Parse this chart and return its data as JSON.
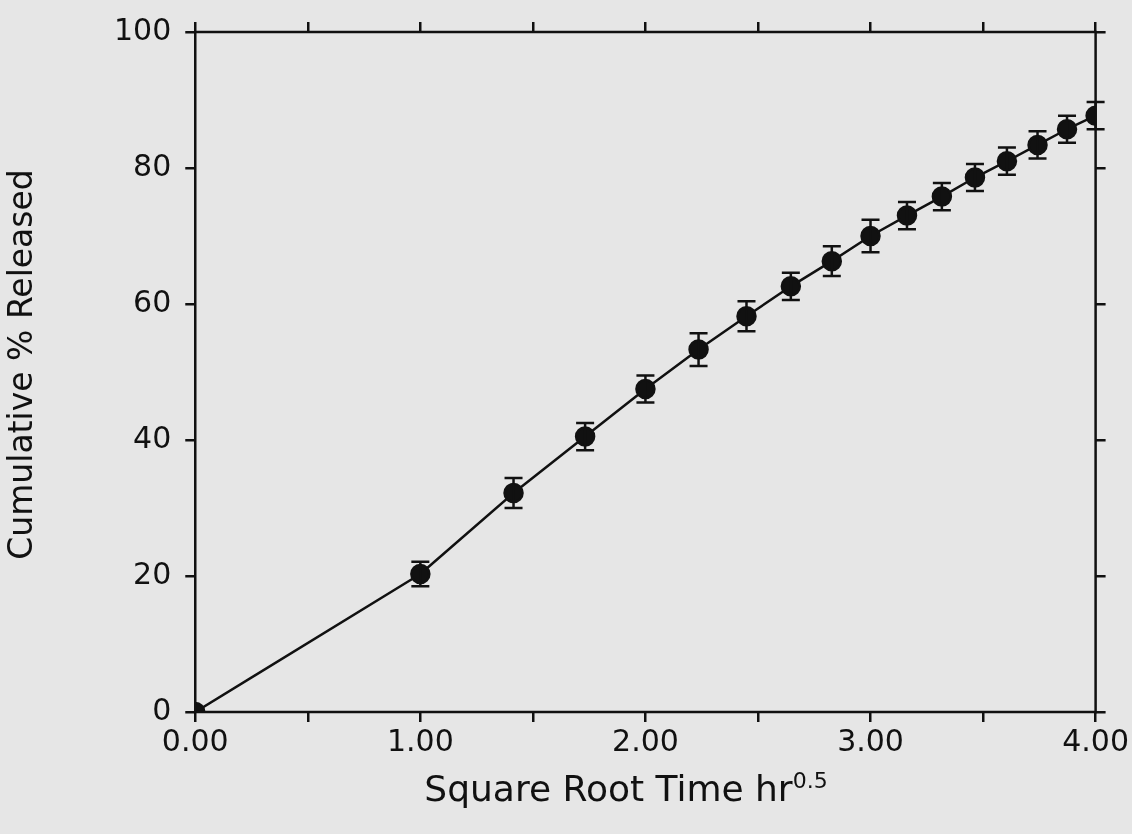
{
  "chart_data": {
    "type": "line",
    "xlabel": "Square Root Time hr$^{0.5}$",
    "ylabel": "Cumulative % Released",
    "x": [
      0,
      1,
      1.414,
      1.732,
      2,
      2.236,
      2.449,
      2.646,
      2.828,
      3,
      3.162,
      3.317,
      3.464,
      3.606,
      3.742,
      3.873,
      4
    ],
    "series": [
      {
        "color": "#111111",
        "values": [
          0,
          20.3,
          32.2,
          40.5,
          47.5,
          53.3,
          58.2,
          62.6,
          66.3,
          70.0,
          73.0,
          75.8,
          78.6,
          81.0,
          83.4,
          85.7,
          87.7
        ],
        "errors": [
          null,
          1.8,
          2.2,
          2,
          2,
          2.4,
          2.2,
          2,
          2.2,
          2.4,
          2,
          2,
          2,
          2,
          2,
          2,
          2
        ]
      }
    ],
    "xlim": [
      0,
      4
    ],
    "xticks": [
      {
        "value": 0,
        "label": "0.00"
      },
      {
        "value": 0.5,
        "label": null
      },
      {
        "value": 1,
        "label": "1.00"
      },
      {
        "value": 1.5,
        "label": null
      },
      {
        "value": 2,
        "label": "2.00"
      },
      {
        "value": 2.5,
        "label": null
      },
      {
        "value": 3,
        "label": "3.00"
      },
      {
        "value": 3.5,
        "label": null
      },
      {
        "value": 4,
        "label": "4.00"
      }
    ],
    "ylim": [
      0,
      100
    ],
    "yticks": [
      0,
      20,
      40,
      60,
      80,
      100
    ],
    "grid": false,
    "legend": false,
    "marker": "circle",
    "line_style": "solid"
  }
}
